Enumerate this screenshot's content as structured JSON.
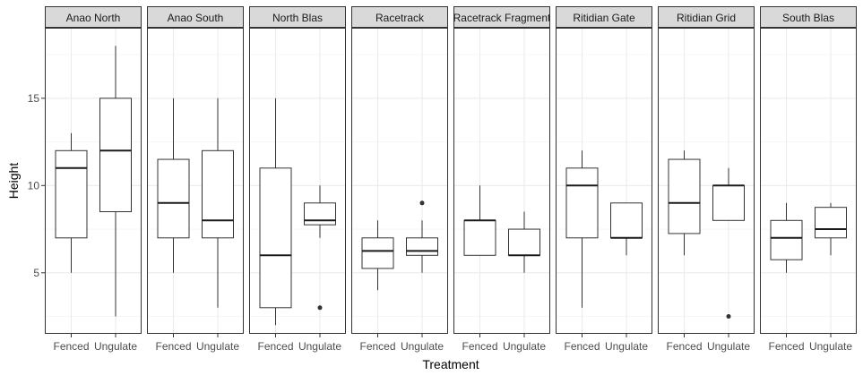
{
  "chart_data": {
    "type": "boxplot",
    "xlabel": "Treatment",
    "ylabel": "Height",
    "ylim": [
      1.5,
      19
    ],
    "yticks": [
      5,
      10,
      15
    ],
    "grid": true,
    "theme": "bw",
    "categories": [
      "Fenced",
      "Ungulate"
    ],
    "facets": [
      {
        "name": "Anao North",
        "boxes": [
          {
            "category": "Fenced",
            "min": 5,
            "q1": 7,
            "median": 11,
            "q3": 12,
            "max": 13,
            "outliers": []
          },
          {
            "category": "Ungulate",
            "min": 2.5,
            "q1": 8.5,
            "median": 12,
            "q3": 15,
            "max": 18,
            "outliers": []
          }
        ]
      },
      {
        "name": "Anao South",
        "boxes": [
          {
            "category": "Fenced",
            "min": 5,
            "q1": 7,
            "median": 9,
            "q3": 11.5,
            "max": 15,
            "outliers": []
          },
          {
            "category": "Ungulate",
            "min": 3,
            "q1": 7,
            "median": 8,
            "q3": 12,
            "max": 15,
            "outliers": []
          }
        ]
      },
      {
        "name": "North Blas",
        "boxes": [
          {
            "category": "Fenced",
            "min": 2,
            "q1": 3,
            "median": 6,
            "q3": 11,
            "max": 15,
            "outliers": []
          },
          {
            "category": "Ungulate",
            "min": 7,
            "q1": 7.75,
            "median": 8,
            "q3": 9,
            "max": 10,
            "outliers": [
              3
            ]
          }
        ]
      },
      {
        "name": "Racetrack",
        "boxes": [
          {
            "category": "Fenced",
            "min": 4,
            "q1": 5.25,
            "median": 6.25,
            "q3": 7,
            "max": 8,
            "outliers": []
          },
          {
            "category": "Ungulate",
            "min": 5,
            "q1": 6,
            "median": 6.25,
            "q3": 7,
            "max": 8,
            "outliers": [
              9
            ]
          }
        ]
      },
      {
        "name": "Racetrack Fragment",
        "boxes": [
          {
            "category": "Fenced",
            "min": 6,
            "q1": 6,
            "median": 8,
            "q3": 8,
            "max": 10,
            "outliers": []
          },
          {
            "category": "Ungulate",
            "min": 5,
            "q1": 6,
            "median": 6,
            "q3": 7.5,
            "max": 8.5,
            "outliers": []
          }
        ]
      },
      {
        "name": "Ritidian Gate",
        "boxes": [
          {
            "category": "Fenced",
            "min": 3,
            "q1": 7,
            "median": 10,
            "q3": 11,
            "max": 12,
            "outliers": []
          },
          {
            "category": "Ungulate",
            "min": 6,
            "q1": 7,
            "median": 7,
            "q3": 9,
            "max": 9,
            "outliers": []
          }
        ]
      },
      {
        "name": "Ritidian Grid",
        "boxes": [
          {
            "category": "Fenced",
            "min": 6,
            "q1": 7.25,
            "median": 9,
            "q3": 11.5,
            "max": 12,
            "outliers": []
          },
          {
            "category": "Ungulate",
            "min": 8,
            "q1": 8,
            "median": 10,
            "q3": 10,
            "max": 11,
            "outliers": [
              2.5
            ]
          }
        ]
      },
      {
        "name": "South Blas",
        "boxes": [
          {
            "category": "Fenced",
            "min": 5,
            "q1": 5.75,
            "median": 7,
            "q3": 8,
            "max": 9,
            "outliers": []
          },
          {
            "category": "Ungulate",
            "min": 6,
            "q1": 7,
            "median": 7.5,
            "q3": 8.75,
            "max": 9,
            "outliers": []
          }
        ]
      }
    ]
  }
}
